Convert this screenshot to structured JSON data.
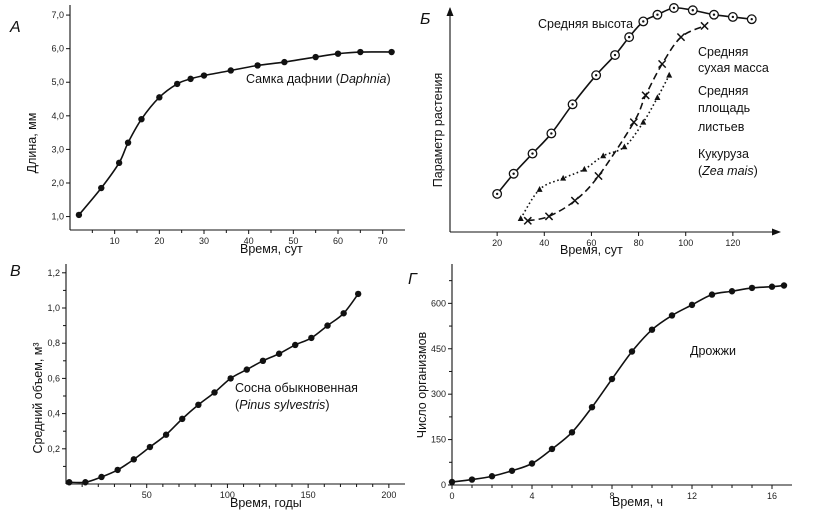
{
  "chart_data": [
    {
      "id": "A",
      "type": "line",
      "panel_letter": "А",
      "xlabel": "Время, сут",
      "ylabel": "Длина, мм",
      "xlim": [
        0,
        75
      ],
      "ylim": [
        0.6,
        7.3
      ],
      "x_ticks": [
        10,
        20,
        30,
        40,
        50,
        60,
        70
      ],
      "y_ticks": [
        1.0,
        2.0,
        3.0,
        4.0,
        5.0,
        6.0,
        7.0
      ],
      "x_tick_labels": [
        "10",
        "20",
        "30",
        "40",
        "50",
        "60",
        "70"
      ],
      "y_tick_labels": [
        "1,0",
        "2,0",
        "3,0",
        "4,0",
        "5,0",
        "6,0",
        "7,0"
      ],
      "annotations": [
        {
          "text": "Самка дафнии (",
          "italic": "Daphnia",
          "suffix": ")"
        }
      ],
      "series": [
        {
          "marker": "dot",
          "points": [
            [
              2,
              1.05
            ],
            [
              7,
              1.85
            ],
            [
              11,
              2.6
            ],
            [
              13,
              3.2
            ],
            [
              16,
              3.9
            ],
            [
              20,
              4.55
            ],
            [
              24,
              4.95
            ],
            [
              27,
              5.1
            ],
            [
              30,
              5.2
            ],
            [
              36,
              5.35
            ],
            [
              42,
              5.5
            ],
            [
              48,
              5.6
            ],
            [
              55,
              5.75
            ],
            [
              60,
              5.85
            ],
            [
              65,
              5.9
            ],
            [
              72,
              5.9
            ]
          ]
        }
      ]
    },
    {
      "id": "B",
      "type": "line",
      "panel_letter": "Б",
      "xlabel": "Время, сут",
      "ylabel": "Параметр растения",
      "xlim": [
        0,
        140
      ],
      "ylim": [
        0,
        1
      ],
      "x_ticks": [
        20,
        40,
        60,
        80,
        100,
        120
      ],
      "x_tick_labels": [
        "20",
        "40",
        "60",
        "80",
        "100",
        "120"
      ],
      "annotations": [
        {
          "text": "Средняя высота"
        },
        {
          "text": "Средняя"
        },
        {
          "text": "сухая масса"
        },
        {
          "text": "Средняя"
        },
        {
          "text": "площадь"
        },
        {
          "text": "листьев"
        },
        {
          "text": "Кукуруза"
        },
        {
          "text": "(",
          "italic": "Zea mais",
          "suffix": ")"
        }
      ],
      "series": [
        {
          "marker": "circle-dot",
          "line": "solid",
          "points": [
            [
              20,
              0.17
            ],
            [
              27,
              0.26
            ],
            [
              35,
              0.35
            ],
            [
              43,
              0.44
            ],
            [
              52,
              0.57
            ],
            [
              62,
              0.7
            ],
            [
              70,
              0.79
            ],
            [
              76,
              0.87
            ],
            [
              82,
              0.94
            ],
            [
              88,
              0.97
            ],
            [
              95,
              1.0
            ],
            [
              103,
              0.99
            ],
            [
              112,
              0.97
            ],
            [
              120,
              0.96
            ],
            [
              128,
              0.95
            ]
          ]
        },
        {
          "marker": "cross",
          "line": "dashed",
          "points": [
            [
              33,
              0.05
            ],
            [
              42,
              0.07
            ],
            [
              53,
              0.14
            ],
            [
              63,
              0.25
            ],
            [
              78,
              0.49
            ],
            [
              83,
              0.61
            ],
            [
              90,
              0.75
            ],
            [
              98,
              0.87
            ],
            [
              108,
              0.92
            ]
          ]
        },
        {
          "marker": "triangle",
          "line": "dotted",
          "points": [
            [
              30,
              0.06
            ],
            [
              38,
              0.19
            ],
            [
              48,
              0.24
            ],
            [
              57,
              0.28
            ],
            [
              65,
              0.34
            ],
            [
              74,
              0.38
            ],
            [
              82,
              0.49
            ],
            [
              88,
              0.6
            ],
            [
              93,
              0.7
            ]
          ]
        }
      ]
    },
    {
      "id": "V",
      "type": "line",
      "panel_letter": "В",
      "xlabel": "Время, годы",
      "ylabel": "Средний объем, м³",
      "xlim": [
        0,
        210
      ],
      "ylim": [
        0,
        1.25
      ],
      "x_ticks": [
        50,
        100,
        150,
        200
      ],
      "x_tick_labels": [
        "50",
        "100",
        "150",
        "200"
      ],
      "y_ticks": [
        0.2,
        0.4,
        0.6,
        0.8,
        1.0,
        1.2
      ],
      "y_tick_labels": [
        "0,2",
        "0,4",
        "0,6",
        "0,8",
        "1,0",
        "1,2"
      ],
      "annotations": [
        {
          "text": "Сосна обыкновенная"
        },
        {
          "text": "(",
          "italic": "Pinus sylvestris",
          "suffix": ")"
        }
      ],
      "series": [
        {
          "marker": "dot",
          "points": [
            [
              2,
              0.01
            ],
            [
              12,
              0.01
            ],
            [
              22,
              0.04
            ],
            [
              32,
              0.08
            ],
            [
              42,
              0.14
            ],
            [
              52,
              0.21
            ],
            [
              62,
              0.28
            ],
            [
              72,
              0.37
            ],
            [
              82,
              0.45
            ],
            [
              92,
              0.52
            ],
            [
              102,
              0.6
            ],
            [
              112,
              0.65
            ],
            [
              122,
              0.7
            ],
            [
              132,
              0.74
            ],
            [
              142,
              0.79
            ],
            [
              152,
              0.83
            ],
            [
              162,
              0.9
            ],
            [
              172,
              0.97
            ],
            [
              181,
              1.08
            ]
          ]
        }
      ]
    },
    {
      "id": "G",
      "type": "line",
      "panel_letter": "Г",
      "xlabel": "Время, ч",
      "ylabel": "Число организмов",
      "xlim": [
        0,
        17
      ],
      "ylim": [
        0,
        730
      ],
      "x_ticks": [
        0,
        4,
        8,
        12,
        16
      ],
      "x_tick_labels": [
        "0",
        "4",
        "8",
        "12",
        "16"
      ],
      "y_ticks": [
        0,
        150,
        300,
        450,
        600
      ],
      "y_tick_labels": [
        "0",
        "150",
        "300",
        "450",
        "600"
      ],
      "annotations": [
        {
          "text": "Дрожжи"
        }
      ],
      "series": [
        {
          "marker": "dot",
          "points": [
            [
              0,
              10
            ],
            [
              1,
              18
            ],
            [
              2,
              29
            ],
            [
              3,
              47
            ],
            [
              4,
              71
            ],
            [
              5,
              119
            ],
            [
              6,
              174
            ],
            [
              7,
              257
            ],
            [
              8,
              350
            ],
            [
              9,
              441
            ],
            [
              10,
              513
            ],
            [
              11,
              560
            ],
            [
              12,
              595
            ],
            [
              13,
              629
            ],
            [
              14,
              640
            ],
            [
              15,
              651
            ],
            [
              16,
              655
            ],
            [
              16.6,
              659
            ]
          ]
        }
      ]
    }
  ]
}
